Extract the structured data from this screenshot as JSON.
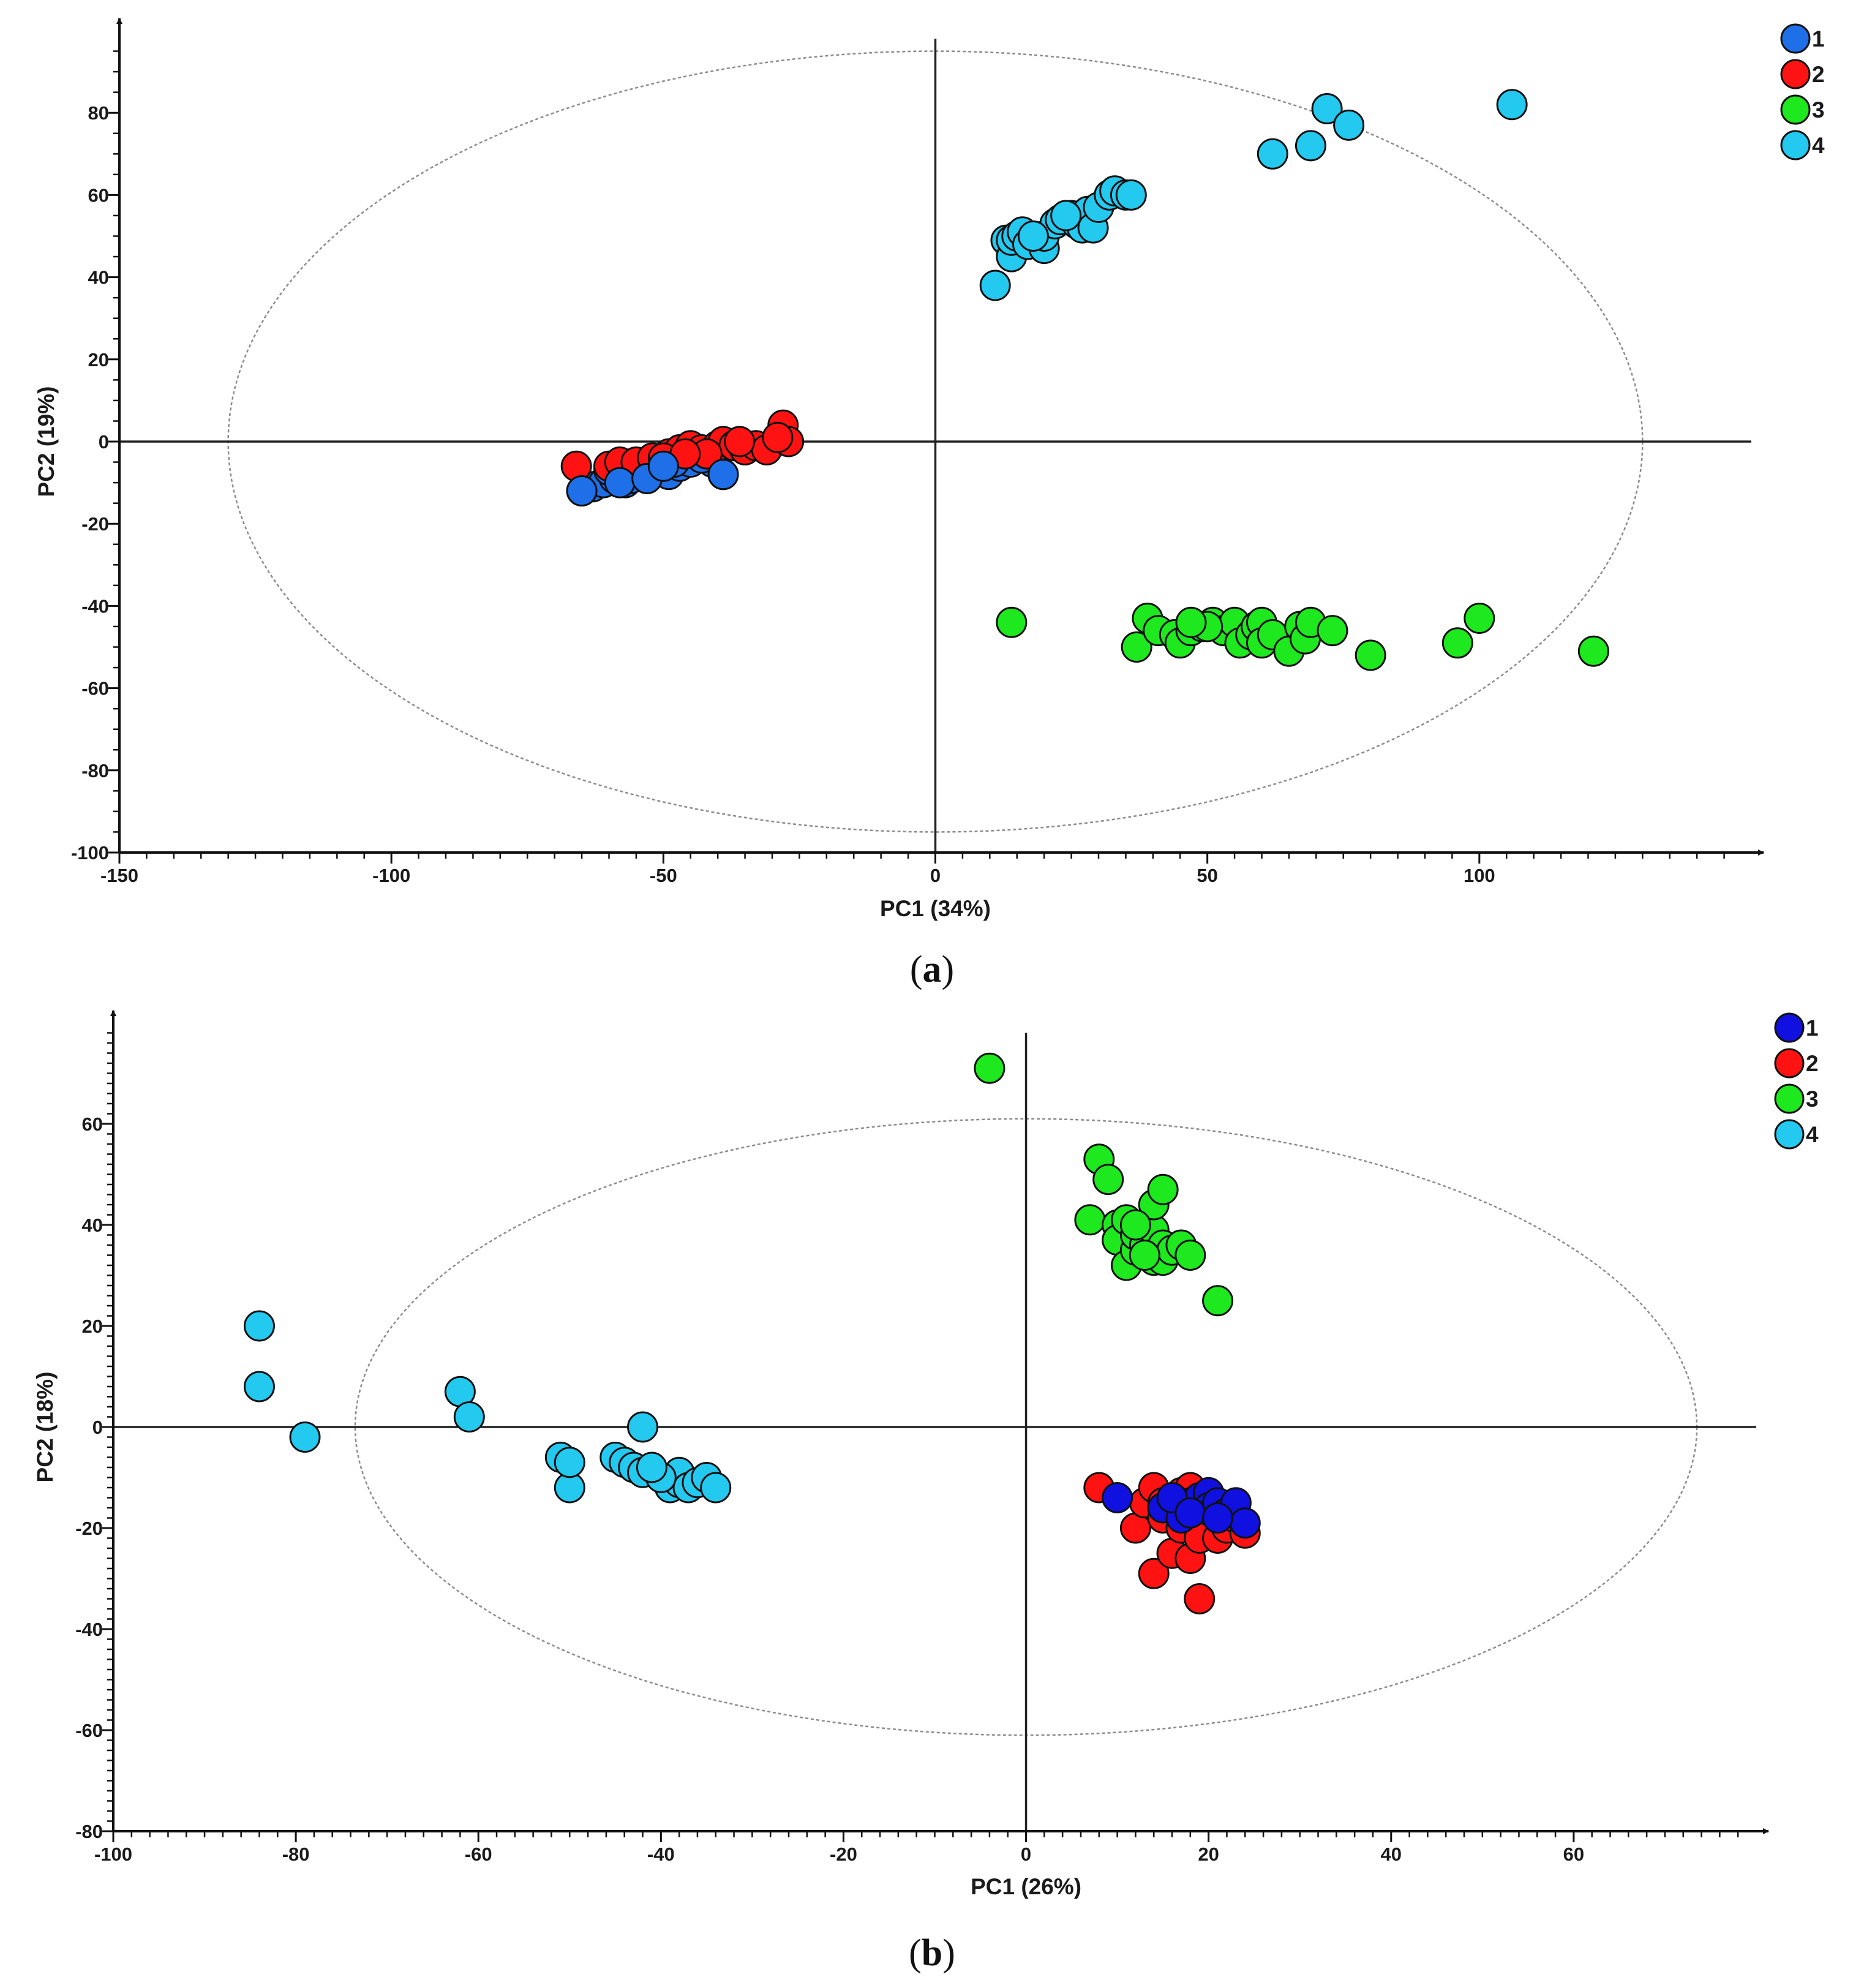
{
  "chart_data": [
    {
      "type": "scatter",
      "panel_label": "(a)",
      "panel_letter": "a",
      "xlabel": "PC1 (34%)",
      "ylabel": "PC2 (19%)",
      "xlim": [
        -150,
        150
      ],
      "ylim": [
        -100,
        100
      ],
      "xticks": [
        -150,
        -100,
        -50,
        0,
        50,
        100
      ],
      "yticks": [
        80,
        60,
        40,
        20,
        0,
        -20,
        -40,
        -60,
        -80,
        -100
      ],
      "ellipse": {
        "cx": 0,
        "cy": 0,
        "rx": 130,
        "ry": 95
      },
      "legend": {
        "placement": "top-right",
        "entries": [
          "1",
          "2",
          "3",
          "4"
        ]
      },
      "series": [
        {
          "name": "1",
          "color": "#1f6fe8",
          "points": [
            [
              -65,
              -12
            ],
            [
              -63,
              -11
            ],
            [
              -61,
              -10
            ],
            [
              -59,
              -9
            ],
            [
              -57,
              -10
            ],
            [
              -55,
              -8
            ],
            [
              -53,
              -9
            ],
            [
              -51,
              -7
            ],
            [
              -49,
              -8
            ],
            [
              -50,
              -6
            ],
            [
              -47,
              -6
            ],
            [
              -45,
              -5
            ],
            [
              -39,
              -8
            ],
            [
              -41,
              -5
            ],
            [
              -43,
              -4
            ],
            [
              -48,
              -5
            ],
            [
              -60,
              -7
            ],
            [
              -56,
              -9
            ]
          ]
        },
        {
          "name": "2",
          "color": "#ff1212",
          "points": [
            [
              -66,
              -6
            ],
            [
              -60,
              -6
            ],
            [
              -58,
              -5
            ],
            [
              -55,
              -5
            ],
            [
              -52,
              -4
            ],
            [
              -49,
              -3
            ],
            [
              -47,
              -2
            ],
            [
              -45,
              -1
            ],
            [
              -43,
              -2
            ],
            [
              -40,
              -1
            ],
            [
              -39,
              0
            ],
            [
              -37,
              -1
            ],
            [
              -35,
              -2
            ],
            [
              -33,
              -1
            ],
            [
              -31,
              -2
            ],
            [
              -28,
              4
            ],
            [
              -27,
              0
            ],
            [
              -29,
              1
            ],
            [
              -42,
              -3
            ],
            [
              -50,
              -4
            ],
            [
              -36,
              0
            ],
            [
              -46,
              -3
            ]
          ]
        },
        {
          "name": "3",
          "color": "#1ee81e",
          "points": [
            [
              14,
              -44
            ],
            [
              37,
              -50
            ],
            [
              39,
              -43
            ],
            [
              41,
              -46
            ],
            [
              44,
              -47
            ],
            [
              45,
              -49
            ],
            [
              47,
              -46
            ],
            [
              49,
              -45
            ],
            [
              51,
              -44
            ],
            [
              53,
              -46
            ],
            [
              55,
              -44
            ],
            [
              56,
              -49
            ],
            [
              58,
              -47
            ],
            [
              59,
              -45
            ],
            [
              60,
              -44
            ],
            [
              60,
              -49
            ],
            [
              62,
              -47
            ],
            [
              65,
              -51
            ],
            [
              67,
              -45
            ],
            [
              68,
              -48
            ],
            [
              69,
              -44
            ],
            [
              73,
              -46
            ],
            [
              80,
              -52
            ],
            [
              96,
              -49
            ],
            [
              100,
              -43
            ],
            [
              121,
              -51
            ],
            [
              50,
              -45
            ],
            [
              47,
              -44
            ]
          ]
        },
        {
          "name": "4",
          "color": "#24c9f0",
          "points": [
            [
              11,
              38
            ],
            [
              13,
              49
            ],
            [
              14,
              45
            ],
            [
              14,
              49
            ],
            [
              15,
              50
            ],
            [
              16,
              51
            ],
            [
              17,
              48
            ],
            [
              20,
              47
            ],
            [
              20,
              50
            ],
            [
              22,
              53
            ],
            [
              23,
              54
            ],
            [
              25,
              55
            ],
            [
              26,
              53
            ],
            [
              27,
              52
            ],
            [
              28,
              56
            ],
            [
              29,
              52
            ],
            [
              30,
              57
            ],
            [
              32,
              60
            ],
            [
              33,
              61
            ],
            [
              35,
              60
            ],
            [
              36,
              60
            ],
            [
              62,
              70
            ],
            [
              69,
              72
            ],
            [
              72,
              81
            ],
            [
              76,
              77
            ],
            [
              106,
              82
            ],
            [
              24,
              55
            ],
            [
              18,
              50
            ]
          ]
        }
      ]
    },
    {
      "type": "scatter",
      "panel_label": "(b)",
      "panel_letter": "b",
      "xlabel": "PC1 (26%)",
      "ylabel": "PC2 (18%)",
      "xlim": [
        -100,
        80
      ],
      "ylim": [
        -80,
        80
      ],
      "xticks": [
        -100,
        -80,
        -60,
        -40,
        -20,
        0,
        20,
        40,
        60
      ],
      "yticks": [
        60,
        40,
        20,
        0,
        -20,
        -40,
        -60,
        -80
      ],
      "ellipse": {
        "cx": 0,
        "cy": 0,
        "rx": 73.5,
        "ry": 61
      },
      "legend": {
        "placement": "top-right",
        "entries": [
          "1",
          "2",
          "3",
          "4"
        ]
      },
      "series": [
        {
          "name": "1",
          "color": "#1010e0",
          "points": [
            [
              10,
              -14
            ],
            [
              15,
              -16
            ],
            [
              17,
              -18
            ],
            [
              18,
              -15
            ],
            [
              19,
              -14
            ],
            [
              20,
              -13
            ],
            [
              20,
              -16
            ],
            [
              21,
              -15
            ],
            [
              22,
              -17
            ],
            [
              23,
              -15
            ],
            [
              24,
              -19
            ],
            [
              16,
              -14
            ],
            [
              18,
              -17
            ],
            [
              21,
              -18
            ]
          ]
        },
        {
          "name": "2",
          "color": "#ff1212",
          "points": [
            [
              8,
              -12
            ],
            [
              12,
              -20
            ],
            [
              13,
              -15
            ],
            [
              14,
              -12
            ],
            [
              14,
              -29
            ],
            [
              15,
              -16
            ],
            [
              15,
              -18
            ],
            [
              16,
              -14
            ],
            [
              16,
              -25
            ],
            [
              17,
              -13
            ],
            [
              17,
              -20
            ],
            [
              18,
              -26
            ],
            [
              18,
              -12
            ],
            [
              19,
              -22
            ],
            [
              19,
              -34
            ],
            [
              20,
              -15
            ],
            [
              21,
              -22
            ],
            [
              22,
              -20
            ],
            [
              23,
              -18
            ],
            [
              24,
              -21
            ],
            [
              15,
              -15
            ],
            [
              17,
              -17
            ]
          ]
        },
        {
          "name": "3",
          "color": "#1ee81e",
          "points": [
            [
              -4,
              71
            ],
            [
              7,
              41
            ],
            [
              8,
              53
            ],
            [
              9,
              49
            ],
            [
              10,
              40
            ],
            [
              10,
              37
            ],
            [
              11,
              41
            ],
            [
              11,
              32
            ],
            [
              12,
              35
            ],
            [
              12,
              38
            ],
            [
              13,
              36
            ],
            [
              14,
              33
            ],
            [
              14,
              39
            ],
            [
              14,
              44
            ],
            [
              15,
              36
            ],
            [
              15,
              33
            ],
            [
              15,
              47
            ],
            [
              16,
              35
            ],
            [
              17,
              36
            ],
            [
              18,
              34
            ],
            [
              21,
              25
            ],
            [
              12,
              40
            ],
            [
              13,
              34
            ]
          ]
        },
        {
          "name": "4",
          "color": "#24c9f0",
          "points": [
            [
              -84,
              20
            ],
            [
              -84,
              8
            ],
            [
              -79,
              -2
            ],
            [
              -62,
              7
            ],
            [
              -61,
              2
            ],
            [
              -51,
              -6
            ],
            [
              -50,
              -12
            ],
            [
              -50,
              -7
            ],
            [
              -45,
              -6
            ],
            [
              -44,
              -7
            ],
            [
              -43,
              -8
            ],
            [
              -42,
              -9
            ],
            [
              -42,
              0
            ],
            [
              -39,
              -12
            ],
            [
              -38,
              -11
            ],
            [
              -38,
              -9
            ],
            [
              -37,
              -12
            ],
            [
              -36,
              -11
            ],
            [
              -35,
              -10
            ],
            [
              -34,
              -12
            ],
            [
              -40,
              -10
            ],
            [
              -41,
              -8
            ]
          ]
        }
      ]
    }
  ]
}
